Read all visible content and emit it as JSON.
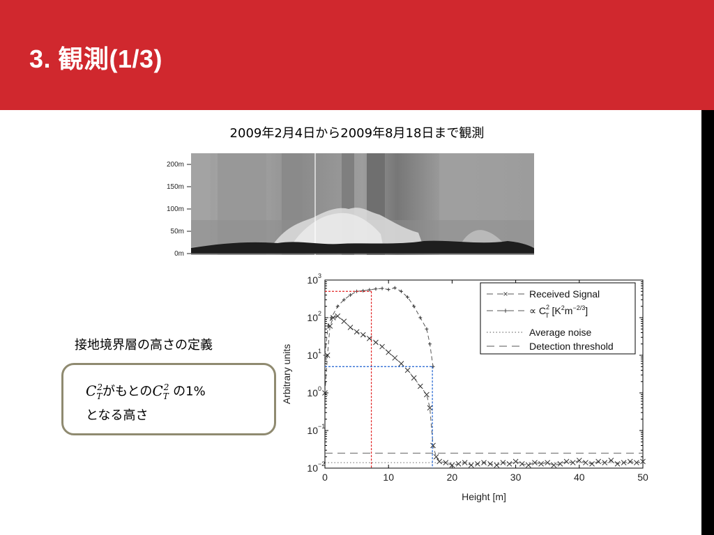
{
  "slide": {
    "title": "3. 観測(1/3)",
    "subtitle": "2009年2月4日から2009年8月18日まで観測",
    "section_label": "接地境界層の高さの定義",
    "definition": {
      "symbol_base": "C",
      "symbol_sub": "T",
      "symbol_sup": "2",
      "text_1": "がもとの",
      "text_2": " の1%",
      "text_3": "となる高さ"
    },
    "colors": {
      "header": "#d0282e",
      "box_border": "#8f8a70",
      "red_guide": "#e02020",
      "blue_guide": "#1a5fd0"
    }
  },
  "wind_panel": {
    "y_ticks": [
      "200m",
      "150m",
      "100m",
      "50m",
      "0m"
    ]
  },
  "chart_data": {
    "type": "line",
    "x_label": "Height [m]",
    "y_label": "Arbitrary units",
    "x_ticks": [
      "0",
      "10",
      "20",
      "30",
      "40",
      "50"
    ],
    "y_ticks": [
      "10",
      "10",
      "10",
      "10",
      "10",
      "10"
    ],
    "y_tick_exps": [
      "3",
      "2",
      "1",
      "0",
      "−1",
      "−2"
    ],
    "xlim": [
      0,
      50
    ],
    "ylim_log10": [
      -2,
      3
    ],
    "y_scale": "log",
    "legend": {
      "position": "top-right",
      "entries": [
        "Received Signal",
        "∝ C",
        "Average noise",
        "Detection threshold"
      ],
      "ct_unit": "[K",
      "ct_unit_sup": "2",
      "ct_unit_mid": "m",
      "ct_unit_sup2": "−2/3",
      "ct_unit_end": "]",
      "ct_sub": "T",
      "ct_sup": "2"
    },
    "series": [
      {
        "name": "Received Signal",
        "style": "dashed-x",
        "x": [
          0,
          0.4,
          0.8,
          1.3,
          2,
          3,
          4,
          5,
          6,
          7,
          8,
          9,
          10,
          11,
          12,
          13,
          14,
          15,
          16,
          16.5,
          17,
          17.5,
          18,
          19,
          20,
          21,
          22,
          23,
          24,
          25,
          26,
          27,
          28,
          29,
          30,
          31,
          32,
          33,
          34,
          35,
          36,
          37,
          38,
          39,
          40,
          41,
          42,
          43,
          44,
          45,
          46,
          47,
          48,
          49,
          50
        ],
        "y": [
          1,
          10,
          60,
          100,
          110,
          80,
          55,
          42,
          35,
          28,
          22,
          17,
          12,
          8.5,
          6,
          4,
          2.5,
          1.5,
          0.9,
          0.4,
          0.04,
          0.02,
          0.015,
          0.014,
          0.012,
          0.013,
          0.014,
          0.012,
          0.013,
          0.014,
          0.013,
          0.012,
          0.014,
          0.013,
          0.015,
          0.013,
          0.012,
          0.014,
          0.013,
          0.014,
          0.012,
          0.013,
          0.015,
          0.014,
          0.016,
          0.014,
          0.013,
          0.015,
          0.014,
          0.016,
          0.013,
          0.014,
          0.015,
          0.014,
          0.015
        ]
      },
      {
        "name": "∝ C_T^2",
        "style": "dashed-plus",
        "x": [
          0,
          0.5,
          1,
          2,
          3,
          4,
          5,
          6,
          7,
          8,
          9,
          10,
          11,
          12,
          13,
          14,
          15,
          16,
          16.5,
          17
        ],
        "y": [
          10,
          60,
          100,
          200,
          300,
          400,
          500,
          520,
          550,
          580,
          600,
          560,
          620,
          500,
          350,
          200,
          100,
          50,
          20,
          5
        ]
      },
      {
        "name": "Average noise",
        "style": "dotted",
        "value": 0.014
      },
      {
        "name": "Detection threshold",
        "style": "dashed",
        "value": 0.025
      }
    ],
    "guides": [
      {
        "color": "red",
        "x": 7.3,
        "y": 500
      },
      {
        "color": "blue",
        "x": 16.9,
        "y": 5
      }
    ]
  }
}
